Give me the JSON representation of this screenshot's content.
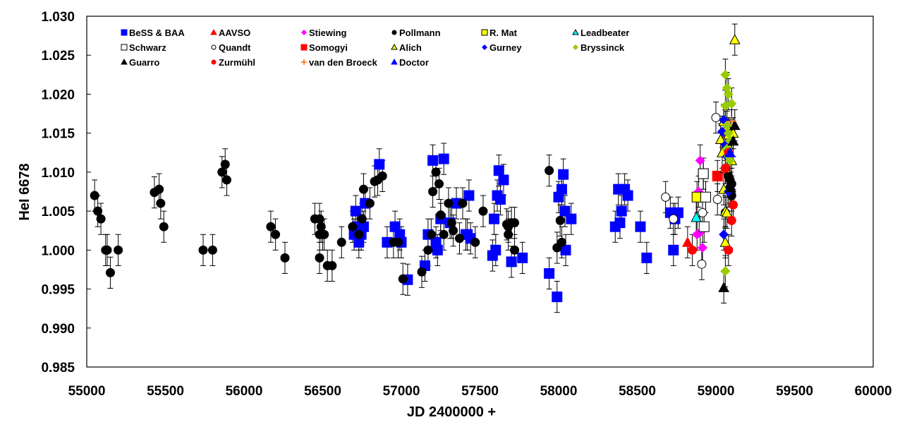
{
  "chart_data": {
    "type": "scatter",
    "title": "",
    "xlabel": "JD 2400000 +",
    "ylabel": "HeI 6678",
    "xlim": [
      55000,
      60000
    ],
    "ylim": [
      0.985,
      1.03
    ],
    "x_ticks": [
      "55000",
      "55500",
      "56000",
      "56500",
      "57000",
      "57500",
      "58000",
      "58500",
      "59000",
      "59500",
      "60000"
    ],
    "y_ticks": [
      "0.985",
      "0.990",
      "0.995",
      "1.000",
      "1.005",
      "1.010",
      "1.015",
      "1.020",
      "1.025",
      "1.030"
    ],
    "grid": false,
    "legend_position": "top-inside",
    "error_bar": 0.002,
    "series": [
      {
        "name": "BeSS & BAA",
        "marker": "square",
        "color": "#0000FF",
        "fill": "#0000FF",
        "points": [
          [
            56700,
            1.002
          ],
          [
            56710,
            1.005
          ],
          [
            56720,
            1.003
          ],
          [
            56730,
            1.001
          ],
          [
            56745,
            1.002
          ],
          [
            56760,
            1.003
          ],
          [
            56770,
            1.006
          ],
          [
            56860,
            1.011
          ],
          [
            56910,
            1.001
          ],
          [
            56960,
            1.003
          ],
          [
            56990,
            1.002
          ],
          [
            57000,
            1.001
          ],
          [
            57040,
            0.9962
          ],
          [
            57150,
            0.998
          ],
          [
            57170,
            1.002
          ],
          [
            57200,
            1.0115
          ],
          [
            57220,
            1.001
          ],
          [
            57230,
            1.0
          ],
          [
            57250,
            1.004
          ],
          [
            57270,
            1.0117
          ],
          [
            57310,
            1.0035
          ],
          [
            57350,
            1.006
          ],
          [
            57410,
            1.002
          ],
          [
            57420,
            1.002
          ],
          [
            57440,
            1.0015
          ],
          [
            57430,
            1.007
          ],
          [
            57580,
            0.9993
          ],
          [
            57590,
            1.004
          ],
          [
            57600,
            1.0
          ],
          [
            57610,
            1.007
          ],
          [
            57620,
            1.0102
          ],
          [
            57630,
            1.0065
          ],
          [
            57650,
            1.009
          ],
          [
            57700,
            0.9985
          ],
          [
            57770,
            0.999
          ],
          [
            57940,
            0.997
          ],
          [
            57990,
            0.994
          ],
          [
            58000,
            1.0068
          ],
          [
            58020,
            1.0078
          ],
          [
            58030,
            1.0097
          ],
          [
            58040,
            1.005
          ],
          [
            58045,
            1.0
          ],
          [
            58080,
            1.004
          ],
          [
            58360,
            1.003
          ],
          [
            58380,
            1.0078
          ],
          [
            58390,
            1.0035
          ],
          [
            58400,
            1.005
          ],
          [
            58420,
            1.0078
          ],
          [
            58440,
            1.007
          ],
          [
            58520,
            1.003
          ],
          [
            58560,
            0.999
          ],
          [
            58710,
            1.0048
          ],
          [
            58730,
            1.0
          ],
          [
            58740,
            1.004
          ],
          [
            58760,
            1.0048
          ]
        ]
      },
      {
        "name": "AAVSO",
        "marker": "triangle",
        "color": "#FF0000",
        "fill": "#FF0000",
        "points": [
          [
            58820,
            1.001
          ]
        ]
      },
      {
        "name": "Stiewing",
        "marker": "diamond",
        "color": "#FF00FF",
        "fill": "#FF00FF",
        "points": [
          [
            58900,
            1.0115
          ],
          [
            58890,
            1.0075
          ],
          [
            58880,
            1.002
          ],
          [
            58900,
            1.0023
          ],
          [
            58915,
            1.0003
          ]
        ]
      },
      {
        "name": "Pollmann",
        "marker": "circle",
        "color": "#000000",
        "fill": "#000000",
        "points": [
          [
            55050,
            1.007
          ],
          [
            55070,
            1.005
          ],
          [
            55090,
            1.004
          ],
          [
            55120,
            1.0
          ],
          [
            55130,
            1.0
          ],
          [
            55150,
            0.9971
          ],
          [
            55200,
            1.0
          ],
          [
            55430,
            1.0074
          ],
          [
            55460,
            1.0078
          ],
          [
            55470,
            1.006
          ],
          [
            55490,
            1.003
          ],
          [
            55740,
            1.0
          ],
          [
            55800,
            1.0
          ],
          [
            55860,
            1.01
          ],
          [
            55880,
            1.011
          ],
          [
            55890,
            1.009
          ],
          [
            56170,
            1.003
          ],
          [
            56200,
            1.002
          ],
          [
            56260,
            0.999
          ],
          [
            56450,
            1.004
          ],
          [
            56480,
            1.004
          ],
          [
            56490,
            1.003
          ],
          [
            56480,
            0.999
          ],
          [
            56500,
            1.002
          ],
          [
            56510,
            1.002
          ],
          [
            56480,
            1.002
          ],
          [
            56530,
            0.998
          ],
          [
            56560,
            0.998
          ],
          [
            56620,
            1.001
          ],
          [
            56690,
            1.003
          ],
          [
            56730,
            1.002
          ],
          [
            56750,
            1.004
          ],
          [
            56760,
            1.0078
          ],
          [
            56800,
            1.006
          ],
          [
            56830,
            1.0088
          ],
          [
            56850,
            1.009
          ],
          [
            56880,
            1.0095
          ],
          [
            56950,
            1.001
          ],
          [
            56980,
            1.001
          ],
          [
            57010,
            0.9963
          ],
          [
            57130,
            0.9972
          ],
          [
            57170,
            1.0
          ],
          [
            57190,
            1.002
          ],
          [
            57200,
            1.0075
          ],
          [
            57220,
            1.01
          ],
          [
            57240,
            1.0085
          ],
          [
            57250,
            1.0045
          ],
          [
            57270,
            1.002
          ],
          [
            57300,
            1.006
          ],
          [
            57320,
            1.0035
          ],
          [
            57330,
            1.0025
          ],
          [
            57370,
            1.0015
          ],
          [
            57390,
            1.006
          ],
          [
            57470,
            1.001
          ],
          [
            57520,
            1.005
          ],
          [
            57670,
            1.0033
          ],
          [
            57700,
            1.0035
          ],
          [
            57720,
            1.0035
          ],
          [
            57680,
            1.003
          ],
          [
            57720,
            1.0
          ],
          [
            57680,
            1.002
          ],
          [
            57940,
            1.0102
          ],
          [
            57990,
            1.0003
          ],
          [
            58010,
            1.0038
          ],
          [
            58020,
            1.001
          ],
          [
            59080,
            1.0095
          ],
          [
            59090,
            1.009
          ],
          [
            59100,
            1.0085
          ],
          [
            59090,
            1.008
          ],
          [
            59100,
            1.007
          ],
          [
            59060,
            1.0048
          ]
        ]
      },
      {
        "name": "R. Mat",
        "marker": "square",
        "color": "#000000",
        "fill": "#FFFF00",
        "points": [
          [
            58880,
            1.0068
          ]
        ]
      },
      {
        "name": "Leadbeater",
        "marker": "triangle",
        "color": "#000000",
        "fill": "#00FFFF",
        "points": [
          [
            58875,
            1.0042
          ]
        ]
      },
      {
        "name": "Schwarz",
        "marker": "square",
        "color": "#000000",
        "fill": "#FFFFFF",
        "points": [
          [
            58920,
            1.0098
          ],
          [
            58935,
            1.0068
          ],
          [
            58925,
            1.003
          ],
          [
            58920,
            1.0098
          ],
          [
            59060,
            1.016
          ]
        ]
      },
      {
        "name": "Quandt",
        "marker": "circle",
        "color": "#000000",
        "fill": "#FFFFFF",
        "points": [
          [
            58680,
            1.0068
          ],
          [
            58730,
            1.004
          ],
          [
            58910,
            0.9982
          ],
          [
            58915,
            1.0048
          ],
          [
            59000,
            1.017
          ],
          [
            59010,
            1.0065
          ]
        ]
      },
      {
        "name": "Somogyi",
        "marker": "square",
        "color": "#FF0000",
        "fill": "#FF0000",
        "points": [
          [
            59010,
            1.0095
          ]
        ]
      },
      {
        "name": "Alich",
        "marker": "triangle",
        "color": "#000000",
        "fill": "#FFFF00",
        "points": [
          [
            59120,
            1.027
          ],
          [
            59030,
            1.0142
          ],
          [
            59050,
            1.0165
          ],
          [
            59070,
            1.0158
          ],
          [
            59080,
            1.0148
          ],
          [
            59040,
            1.0125
          ],
          [
            59060,
            1.0105
          ],
          [
            59050,
            1.0078
          ],
          [
            59060,
            1.005
          ],
          [
            59070,
            1.0048
          ],
          [
            59060,
            1.001
          ],
          [
            59100,
            1.0115
          ],
          [
            59110,
            1.015
          ],
          [
            59075,
            1.0135
          ]
        ]
      },
      {
        "name": "Gurney",
        "marker": "diamond",
        "color": "#0000FF",
        "fill": "#0000FF",
        "points": [
          [
            59050,
            1.0167
          ],
          [
            59040,
            1.0152
          ],
          [
            59060,
            1.0135
          ],
          [
            59080,
            1.0075
          ],
          [
            59050,
            1.002
          ],
          [
            59070,
            1.012
          ]
        ]
      },
      {
        "name": "Bryssinck",
        "marker": "diamond",
        "color": "#99CC00",
        "fill": "#99CC00",
        "points": [
          [
            59060,
            1.0225
          ],
          [
            59070,
            1.0208
          ],
          [
            59080,
            1.02
          ],
          [
            59060,
            1.0185
          ],
          [
            59100,
            1.0188
          ],
          [
            59070,
            1.016
          ],
          [
            59080,
            1.015
          ],
          [
            59090,
            1.014
          ],
          [
            59070,
            1.013
          ],
          [
            59080,
            1.012
          ],
          [
            59090,
            1.0115
          ],
          [
            59060,
            0.9973
          ]
        ]
      },
      {
        "name": "Guarro",
        "marker": "triangle",
        "color": "#000000",
        "fill": "#000000",
        "points": [
          [
            59120,
            1.016
          ],
          [
            59110,
            1.014
          ],
          [
            59050,
            0.9952
          ],
          [
            59095,
            1.008
          ]
        ]
      },
      {
        "name": "Zurmühl",
        "marker": "circle",
        "color": "#FF0000",
        "fill": "#FF0000",
        "points": [
          [
            58850,
            1.0
          ],
          [
            59080,
            1.0125
          ],
          [
            59060,
            1.0105
          ],
          [
            59110,
            1.0058
          ],
          [
            59100,
            1.0038
          ],
          [
            59080,
            1.0
          ]
        ]
      },
      {
        "name": "van den Broeck",
        "marker": "plus",
        "color": "#FF6600",
        "fill": "#FF6600",
        "points": [
          [
            59100,
            1.0165
          ]
        ]
      },
      {
        "name": "Doctor",
        "marker": "triangle",
        "color": "#0000FF",
        "fill": "#0000FF",
        "points": [
          [
            59090,
            1.0125
          ]
        ]
      }
    ]
  }
}
